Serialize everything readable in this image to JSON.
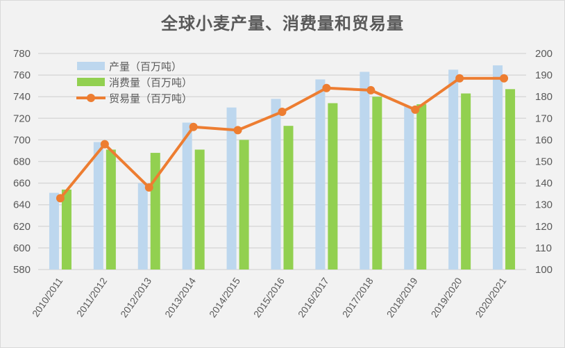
{
  "chart_data": {
    "type": "bar",
    "title": "全球小麦产量、消费量和贸易量",
    "categories": [
      "2010/2011",
      "2011/2012",
      "2012/2013",
      "2013/2014",
      "2014/2015",
      "2015/2016",
      "2016/2017",
      "2017/2018",
      "2018/2019",
      "2019/2020",
      "2020/2021"
    ],
    "series": [
      {
        "name": "产量（百万吨）",
        "type": "bar",
        "axis": "left",
        "color": "#bdd7ee",
        "values": [
          651,
          698,
          660,
          716,
          730,
          738,
          756,
          763,
          731,
          765,
          769
        ]
      },
      {
        "name": "消费量（百万吨）",
        "type": "bar",
        "axis": "left",
        "color": "#92d050",
        "values": [
          654,
          691,
          688,
          691,
          700,
          713,
          734,
          740,
          733,
          743,
          747
        ]
      },
      {
        "name": "贸易量（百万吨）",
        "type": "line",
        "axis": "right",
        "color": "#ed7d31",
        "values": [
          133,
          158,
          138,
          166,
          164.5,
          173,
          184,
          183,
          174,
          188.5,
          188.5
        ]
      }
    ],
    "ylim_left": [
      580,
      780
    ],
    "yticks_left": [
      580,
      600,
      620,
      640,
      660,
      680,
      700,
      720,
      740,
      760,
      780
    ],
    "ylim_right": [
      100,
      200
    ],
    "yticks_right": [
      100,
      110,
      120,
      130,
      140,
      150,
      160,
      170,
      180,
      190,
      200
    ],
    "xlabel": "",
    "ylabel": "",
    "grid": true,
    "legend_position": "top-left inside"
  },
  "colors": {
    "background": "#f2f2f2",
    "grid": "#d9d9d9",
    "text": "#595959"
  }
}
